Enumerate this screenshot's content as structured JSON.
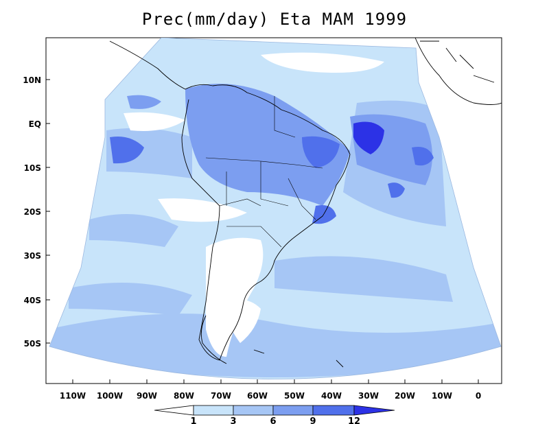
{
  "title": "Prec(mm/day) Eta MAM 1999",
  "map": {
    "region": "South America",
    "variable": "Precipitation (mm/day)",
    "lat_ticks": [
      {
        "label": "10N",
        "value": 10
      },
      {
        "label": "EQ",
        "value": 0
      },
      {
        "label": "10S",
        "value": -10
      },
      {
        "label": "20S",
        "value": -20
      },
      {
        "label": "30S",
        "value": -30
      },
      {
        "label": "40S",
        "value": -40
      },
      {
        "label": "50S",
        "value": -50
      }
    ],
    "lon_ticks": [
      {
        "label": "110W",
        "value": -110
      },
      {
        "label": "100W",
        "value": -100
      },
      {
        "label": "90W",
        "value": -90
      },
      {
        "label": "80W",
        "value": -80
      },
      {
        "label": "70W",
        "value": -70
      },
      {
        "label": "60W",
        "value": -60
      },
      {
        "label": "50W",
        "value": -50
      },
      {
        "label": "40W",
        "value": -40
      },
      {
        "label": "30W",
        "value": -30
      },
      {
        "label": "20W",
        "value": -20
      },
      {
        "label": "10W",
        "value": -10
      },
      {
        "label": "0",
        "value": 0
      }
    ]
  },
  "colorbar": {
    "labels": [
      "1",
      "3",
      "6",
      "9",
      "12"
    ],
    "colors": [
      "#ffffff",
      "#c8e4fa",
      "#a6c6f5",
      "#7c9ef0",
      "#5070eb",
      "#2c32e6"
    ]
  },
  "colors": {
    "ocean_low": "#c8e4fa",
    "mid": "#a6c6f5",
    "high": "#7c9ef0",
    "very_high": "#5070eb",
    "extreme": "#2c32e6",
    "dry": "#ffffff"
  }
}
